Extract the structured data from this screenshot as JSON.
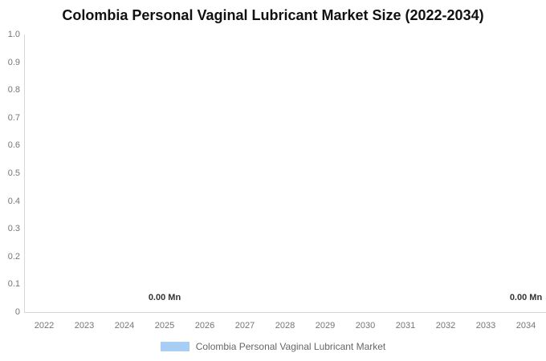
{
  "chart_data": {
    "type": "bar",
    "title": "Colombia Personal Vaginal Lubricant Market Size (2022-2034)",
    "categories": [
      "2022",
      "2023",
      "2024",
      "2025",
      "2026",
      "2027",
      "2028",
      "2029",
      "2030",
      "2031",
      "2032",
      "2033",
      "2034"
    ],
    "series": [
      {
        "name": "Colombia Personal Vaginal Lubricant Market",
        "values": [
          0.0,
          0.0,
          0.0,
          0.0,
          0.0,
          0.0,
          0.0,
          0.0,
          0.0,
          0.0,
          0.0,
          0.0,
          0.0
        ],
        "color": "#a8cef5"
      }
    ],
    "unit": "Mn",
    "y_ticks": [
      "1.0",
      "0.9",
      "0.8",
      "0.7",
      "0.6",
      "0.5",
      "0.4",
      "0.3",
      "0.2",
      "0.1",
      "0"
    ],
    "ylim": [
      0,
      1.0
    ],
    "grid": false,
    "legend_position": "bottom",
    "data_labels": [
      {
        "text": "0.00 Mn",
        "category": "2025"
      },
      {
        "text": "0.00 Mn",
        "category": "2034"
      }
    ]
  },
  "colors": {
    "title": "#111111",
    "axis_line": "#d6d6d6",
    "tick_label": "#757575",
    "data_label": "#333333",
    "legend_text": "#666666",
    "series_swatch": "#a8cef5",
    "background": "#ffffff"
  }
}
